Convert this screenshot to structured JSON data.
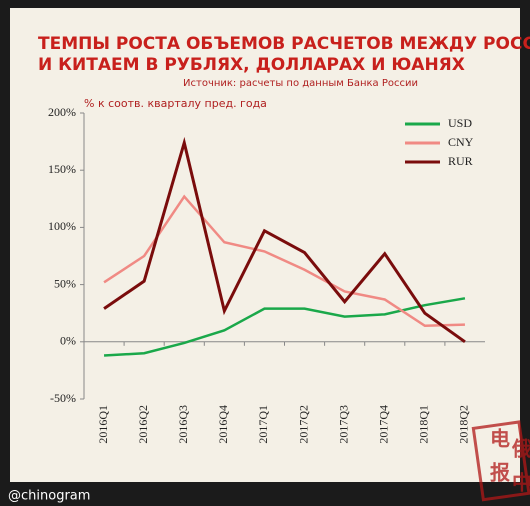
{
  "chart_data": {
    "type": "line",
    "title": [
      "ТЕМПЫ РОСТА ОБЪЕМОВ РАСЧЕТОВ МЕЖДУ РОССИЕЙ",
      "И КИТАЕМ В РУБЛЯХ, ДОЛЛАРАХ И ЮАНЯХ"
    ],
    "subtitle": "Источник: расчеты по данным Банка России",
    "y_label": "% к соотв. кварталу пред. года",
    "categories": [
      "2016Q1",
      "2016Q2",
      "2016Q3",
      "2016Q4",
      "2017Q1",
      "2017Q2",
      "2017Q3",
      "2017Q4",
      "2018Q1",
      "2018Q2"
    ],
    "series": [
      {
        "name": "USD",
        "color": "#1aa84a",
        "values": [
          -12,
          -10,
          -1,
          10,
          29,
          29,
          22,
          24,
          32,
          38
        ]
      },
      {
        "name": "CNY",
        "color": "#f08a84",
        "values": [
          52,
          75,
          127,
          87,
          79,
          63,
          44,
          37,
          14,
          15
        ]
      },
      {
        "name": "RUR",
        "color": "#7a0c0c",
        "values": [
          29,
          53,
          174,
          27,
          97,
          78,
          35,
          77,
          25,
          0
        ]
      }
    ],
    "ylim": [
      -50,
      200
    ],
    "yticks": [
      {
        "value": -50,
        "label": "-50%"
      },
      {
        "value": 0,
        "label": "0%"
      },
      {
        "value": 50,
        "label": "50%"
      },
      {
        "value": 100,
        "label": "100%"
      },
      {
        "value": 150,
        "label": "150%"
      },
      {
        "value": 200,
        "label": "200%"
      }
    ],
    "legend": "top-right",
    "watermark": "@chinogram",
    "stamp": [
      "电",
      "俄",
      "报",
      "中"
    ]
  }
}
